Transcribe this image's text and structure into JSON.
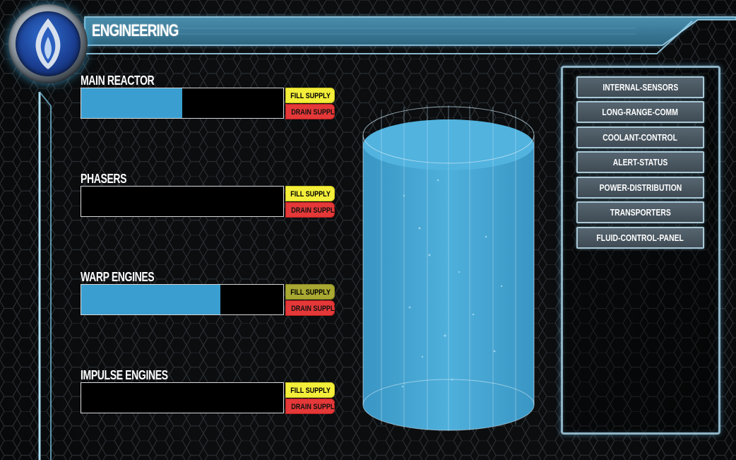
{
  "header": {
    "title": "ENGINEERING",
    "logo_icon": "flame-icon"
  },
  "gauges": [
    {
      "label": "MAIN REACTOR",
      "level": 0.5,
      "fill_label": "FILL SUPPLY",
      "drain_label": "DRAIN SUPPLY"
    },
    {
      "label": "PHASERS",
      "level": 0.0,
      "fill_label": "FILL SUPPLY",
      "drain_label": "DRAIN SUPPLY"
    },
    {
      "label": "WARP ENGINES",
      "level": 0.69,
      "fill_label": "FILL SUPPLY",
      "drain_label": "DRAIN SUPPLY"
    },
    {
      "label": "IMPULSE ENGINES",
      "level": 0.0,
      "fill_label": "FILL SUPPLY",
      "drain_label": "DRAIN SUPPLY"
    }
  ],
  "menu": {
    "items": [
      {
        "label": "INTERNAL-SENSORS"
      },
      {
        "label": "LONG-RANGE-COMM"
      },
      {
        "label": "COOLANT-CONTROL"
      },
      {
        "label": "ALERT-STATUS"
      },
      {
        "label": "POWER-DISTRIBUTION"
      },
      {
        "label": "TRANSPORTERS"
      },
      {
        "label": "FLUID-CONTROL-PANEL"
      }
    ]
  },
  "tank": {
    "level": 1.0
  },
  "colors": {
    "accent": "#3a9fd0",
    "fill_button": "#f3ee3a",
    "drain_button": "#e53838",
    "frame": "#8fb4c6",
    "background": "#0b0d0f"
  }
}
